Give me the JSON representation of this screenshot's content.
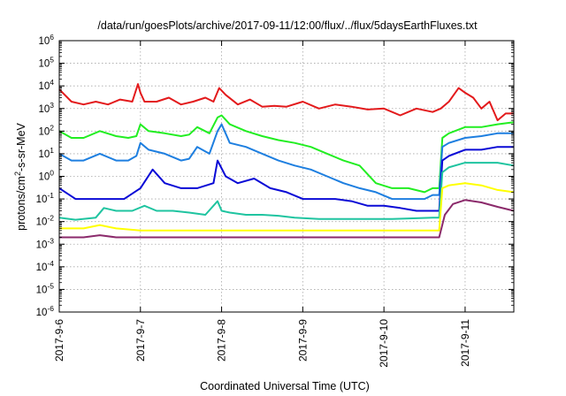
{
  "chart_data": {
    "type": "line",
    "title": "/data/run/goesPlots/archive/2017-09-11/12:00/flux/../flux/5daysEarthFluxes.txt",
    "xlabel": "Coordinated Universal Time (UTC)",
    "ylabel": {
      "prefix": "protons/cm",
      "superscript": "2",
      "suffix": "-s-sr-MeV"
    },
    "y_scale": "log",
    "ylim": [
      1e-06,
      1000000.0
    ],
    "y_ticks": [
      {
        "value": 1e-06,
        "base": "10",
        "exp": "-6"
      },
      {
        "value": 1e-05,
        "base": "10",
        "exp": "-5"
      },
      {
        "value": 0.0001,
        "base": "10",
        "exp": "-4"
      },
      {
        "value": 0.001,
        "base": "10",
        "exp": "-3"
      },
      {
        "value": 0.01,
        "base": "10",
        "exp": "-2"
      },
      {
        "value": 0.1,
        "base": "10",
        "exp": "-1"
      },
      {
        "value": 1.0,
        "base": "10",
        "exp": "0"
      },
      {
        "value": 10.0,
        "base": "10",
        "exp": "1"
      },
      {
        "value": 100.0,
        "base": "10",
        "exp": "2"
      },
      {
        "value": 1000.0,
        "base": "10",
        "exp": "3"
      },
      {
        "value": 10000.0,
        "base": "10",
        "exp": "4"
      },
      {
        "value": 100000.0,
        "base": "10",
        "exp": "5"
      },
      {
        "value": 1000000.0,
        "base": "10",
        "exp": "6"
      }
    ],
    "x_unit": "day of September 2017",
    "xlim": [
      6.0,
      11.6
    ],
    "x_ticks": [
      {
        "value": 6,
        "label": "2017-9-6"
      },
      {
        "value": 7,
        "label": "2017-9-7"
      },
      {
        "value": 8,
        "label": "2017-9-8"
      },
      {
        "value": 9,
        "label": "2017-9-9"
      },
      {
        "value": 10,
        "label": "2017-9-10"
      },
      {
        "value": 11,
        "label": "2017-9-11"
      }
    ],
    "grid": true,
    "series": [
      {
        "color": "#e31a1c",
        "x": [
          6.0,
          6.15,
          6.3,
          6.45,
          6.6,
          6.75,
          6.9,
          6.97,
          7.0,
          7.05,
          7.2,
          7.35,
          7.5,
          7.65,
          7.8,
          7.9,
          7.97,
          8.05,
          8.2,
          8.35,
          8.5,
          8.65,
          8.8,
          9.0,
          9.2,
          9.4,
          9.6,
          9.8,
          10.0,
          10.2,
          10.4,
          10.6,
          10.7,
          10.8,
          10.92,
          11.0,
          11.1,
          11.2,
          11.3,
          11.4,
          11.5,
          11.6
        ],
        "y": [
          7000,
          2000,
          1500,
          2000,
          1500,
          2500,
          2000,
          12000,
          5000,
          2000,
          2000,
          3000,
          1500,
          2000,
          3000,
          2000,
          8000,
          4000,
          1500,
          2500,
          1200,
          1300,
          1200,
          2000,
          1000,
          1500,
          1200,
          900,
          1000,
          500,
          1000,
          700,
          1000,
          2000,
          8000,
          5000,
          3000,
          1000,
          2000,
          300,
          600,
          600
        ]
      },
      {
        "color": "#22ee22",
        "x": [
          6.0,
          6.15,
          6.3,
          6.5,
          6.7,
          6.85,
          6.95,
          7.0,
          7.1,
          7.3,
          7.5,
          7.6,
          7.7,
          7.85,
          7.95,
          8.0,
          8.1,
          8.3,
          8.5,
          8.7,
          8.9,
          9.1,
          9.3,
          9.5,
          9.7,
          9.9,
          10.1,
          10.3,
          10.5,
          10.6,
          10.68,
          10.72,
          10.8,
          11.0,
          11.2,
          11.4,
          11.6
        ],
        "y": [
          100,
          50,
          50,
          100,
          60,
          50,
          60,
          200,
          100,
          80,
          60,
          70,
          150,
          80,
          400,
          500,
          200,
          100,
          60,
          40,
          30,
          20,
          10,
          5,
          3,
          0.5,
          0.3,
          0.3,
          0.2,
          0.3,
          0.3,
          50,
          80,
          150,
          150,
          200,
          250
        ]
      },
      {
        "color": "#1e7fe0",
        "x": [
          6.0,
          6.15,
          6.3,
          6.5,
          6.7,
          6.85,
          6.95,
          7.0,
          7.1,
          7.3,
          7.5,
          7.6,
          7.7,
          7.85,
          7.95,
          8.0,
          8.1,
          8.3,
          8.5,
          8.7,
          8.9,
          9.1,
          9.3,
          9.5,
          9.7,
          9.9,
          10.1,
          10.3,
          10.5,
          10.6,
          10.68,
          10.72,
          10.8,
          11.0,
          11.2,
          11.4,
          11.6
        ],
        "y": [
          10,
          5,
          5,
          10,
          5,
          5,
          8,
          30,
          15,
          10,
          5,
          6,
          20,
          10,
          100,
          200,
          30,
          20,
          10,
          5,
          3,
          2,
          1,
          0.5,
          0.3,
          0.2,
          0.1,
          0.1,
          0.1,
          0.15,
          0.15,
          20,
          30,
          50,
          60,
          80,
          80
        ]
      },
      {
        "color": "#0a0ad6",
        "x": [
          6.0,
          6.2,
          6.4,
          6.6,
          6.8,
          7.0,
          7.15,
          7.3,
          7.5,
          7.7,
          7.9,
          7.95,
          8.05,
          8.2,
          8.4,
          8.6,
          8.8,
          9.0,
          9.2,
          9.4,
          9.6,
          9.8,
          10.0,
          10.2,
          10.4,
          10.6,
          10.68,
          10.72,
          10.8,
          11.0,
          11.2,
          11.4,
          11.6
        ],
        "y": [
          0.3,
          0.1,
          0.1,
          0.1,
          0.1,
          0.3,
          2,
          0.5,
          0.3,
          0.3,
          0.5,
          5,
          1,
          0.5,
          0.8,
          0.3,
          0.2,
          0.1,
          0.1,
          0.1,
          0.08,
          0.05,
          0.05,
          0.04,
          0.03,
          0.03,
          0.03,
          5,
          8,
          15,
          15,
          20,
          20
        ]
      },
      {
        "color": "#1fc4a0",
        "x": [
          6.0,
          6.2,
          6.45,
          6.55,
          6.7,
          6.9,
          7.05,
          7.2,
          7.4,
          7.6,
          7.8,
          7.95,
          8.0,
          8.1,
          8.3,
          8.5,
          8.7,
          8.9,
          9.2,
          9.5,
          9.8,
          10.1,
          10.4,
          10.6,
          10.68,
          10.72,
          10.8,
          11.0,
          11.2,
          11.4,
          11.6
        ],
        "y": [
          0.015,
          0.012,
          0.015,
          0.04,
          0.03,
          0.03,
          0.05,
          0.03,
          0.03,
          0.025,
          0.02,
          0.08,
          0.03,
          0.025,
          0.02,
          0.02,
          0.018,
          0.015,
          0.013,
          0.013,
          0.013,
          0.013,
          0.014,
          0.015,
          0.015,
          1.5,
          2.5,
          4,
          4,
          4,
          3
        ]
      },
      {
        "color": "#ffff00",
        "x": [
          6.0,
          6.3,
          6.5,
          6.7,
          7.0,
          7.5,
          8.0,
          8.5,
          9.0,
          9.5,
          10.0,
          10.5,
          10.68,
          10.72,
          10.8,
          11.0,
          11.2,
          11.4,
          11.6
        ],
        "y": [
          0.005,
          0.005,
          0.007,
          0.005,
          0.004,
          0.004,
          0.004,
          0.004,
          0.004,
          0.004,
          0.004,
          0.004,
          0.004,
          0.3,
          0.4,
          0.5,
          0.4,
          0.25,
          0.2
        ]
      },
      {
        "color": "#8b2a6b",
        "x": [
          6.0,
          6.3,
          6.5,
          6.7,
          7.0,
          7.5,
          8.0,
          8.5,
          9.0,
          9.5,
          10.0,
          10.5,
          10.68,
          10.75,
          10.85,
          11.0,
          11.2,
          11.4,
          11.6
        ],
        "y": [
          0.002,
          0.002,
          0.0025,
          0.002,
          0.002,
          0.002,
          0.002,
          0.002,
          0.002,
          0.002,
          0.002,
          0.002,
          0.002,
          0.02,
          0.06,
          0.09,
          0.07,
          0.045,
          0.03
        ]
      }
    ]
  }
}
